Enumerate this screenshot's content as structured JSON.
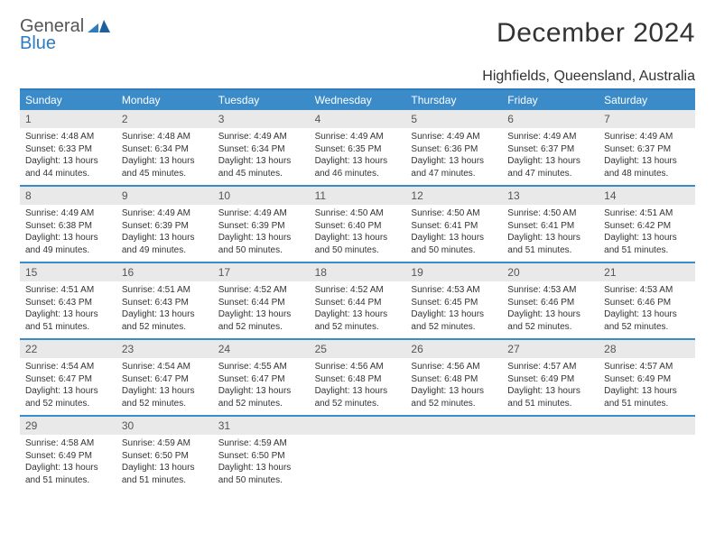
{
  "brand": {
    "line1": "General",
    "line2": "Blue"
  },
  "title": "December 2024",
  "location": "Highfields, Queensland, Australia",
  "colors": {
    "accent": "#3b8bc9",
    "accent_dark": "#2f7bbf",
    "header_gray": "#e9e9e9",
    "text": "#333333"
  },
  "dow": [
    "Sunday",
    "Monday",
    "Tuesday",
    "Wednesday",
    "Thursday",
    "Friday",
    "Saturday"
  ],
  "weeks": [
    [
      {
        "n": "1",
        "sr": "4:48 AM",
        "ss": "6:33 PM",
        "dl": "13 hours and 44 minutes."
      },
      {
        "n": "2",
        "sr": "4:48 AM",
        "ss": "6:34 PM",
        "dl": "13 hours and 45 minutes."
      },
      {
        "n": "3",
        "sr": "4:49 AM",
        "ss": "6:34 PM",
        "dl": "13 hours and 45 minutes."
      },
      {
        "n": "4",
        "sr": "4:49 AM",
        "ss": "6:35 PM",
        "dl": "13 hours and 46 minutes."
      },
      {
        "n": "5",
        "sr": "4:49 AM",
        "ss": "6:36 PM",
        "dl": "13 hours and 47 minutes."
      },
      {
        "n": "6",
        "sr": "4:49 AM",
        "ss": "6:37 PM",
        "dl": "13 hours and 47 minutes."
      },
      {
        "n": "7",
        "sr": "4:49 AM",
        "ss": "6:37 PM",
        "dl": "13 hours and 48 minutes."
      }
    ],
    [
      {
        "n": "8",
        "sr": "4:49 AM",
        "ss": "6:38 PM",
        "dl": "13 hours and 49 minutes."
      },
      {
        "n": "9",
        "sr": "4:49 AM",
        "ss": "6:39 PM",
        "dl": "13 hours and 49 minutes."
      },
      {
        "n": "10",
        "sr": "4:49 AM",
        "ss": "6:39 PM",
        "dl": "13 hours and 50 minutes."
      },
      {
        "n": "11",
        "sr": "4:50 AM",
        "ss": "6:40 PM",
        "dl": "13 hours and 50 minutes."
      },
      {
        "n": "12",
        "sr": "4:50 AM",
        "ss": "6:41 PM",
        "dl": "13 hours and 50 minutes."
      },
      {
        "n": "13",
        "sr": "4:50 AM",
        "ss": "6:41 PM",
        "dl": "13 hours and 51 minutes."
      },
      {
        "n": "14",
        "sr": "4:51 AM",
        "ss": "6:42 PM",
        "dl": "13 hours and 51 minutes."
      }
    ],
    [
      {
        "n": "15",
        "sr": "4:51 AM",
        "ss": "6:43 PM",
        "dl": "13 hours and 51 minutes."
      },
      {
        "n": "16",
        "sr": "4:51 AM",
        "ss": "6:43 PM",
        "dl": "13 hours and 52 minutes."
      },
      {
        "n": "17",
        "sr": "4:52 AM",
        "ss": "6:44 PM",
        "dl": "13 hours and 52 minutes."
      },
      {
        "n": "18",
        "sr": "4:52 AM",
        "ss": "6:44 PM",
        "dl": "13 hours and 52 minutes."
      },
      {
        "n": "19",
        "sr": "4:53 AM",
        "ss": "6:45 PM",
        "dl": "13 hours and 52 minutes."
      },
      {
        "n": "20",
        "sr": "4:53 AM",
        "ss": "6:46 PM",
        "dl": "13 hours and 52 minutes."
      },
      {
        "n": "21",
        "sr": "4:53 AM",
        "ss": "6:46 PM",
        "dl": "13 hours and 52 minutes."
      }
    ],
    [
      {
        "n": "22",
        "sr": "4:54 AM",
        "ss": "6:47 PM",
        "dl": "13 hours and 52 minutes."
      },
      {
        "n": "23",
        "sr": "4:54 AM",
        "ss": "6:47 PM",
        "dl": "13 hours and 52 minutes."
      },
      {
        "n": "24",
        "sr": "4:55 AM",
        "ss": "6:47 PM",
        "dl": "13 hours and 52 minutes."
      },
      {
        "n": "25",
        "sr": "4:56 AM",
        "ss": "6:48 PM",
        "dl": "13 hours and 52 minutes."
      },
      {
        "n": "26",
        "sr": "4:56 AM",
        "ss": "6:48 PM",
        "dl": "13 hours and 52 minutes."
      },
      {
        "n": "27",
        "sr": "4:57 AM",
        "ss": "6:49 PM",
        "dl": "13 hours and 51 minutes."
      },
      {
        "n": "28",
        "sr": "4:57 AM",
        "ss": "6:49 PM",
        "dl": "13 hours and 51 minutes."
      }
    ],
    [
      {
        "n": "29",
        "sr": "4:58 AM",
        "ss": "6:49 PM",
        "dl": "13 hours and 51 minutes."
      },
      {
        "n": "30",
        "sr": "4:59 AM",
        "ss": "6:50 PM",
        "dl": "13 hours and 51 minutes."
      },
      {
        "n": "31",
        "sr": "4:59 AM",
        "ss": "6:50 PM",
        "dl": "13 hours and 50 minutes."
      },
      null,
      null,
      null,
      null
    ]
  ],
  "labels": {
    "sunrise": "Sunrise:",
    "sunset": "Sunset:",
    "daylight": "Daylight:"
  }
}
